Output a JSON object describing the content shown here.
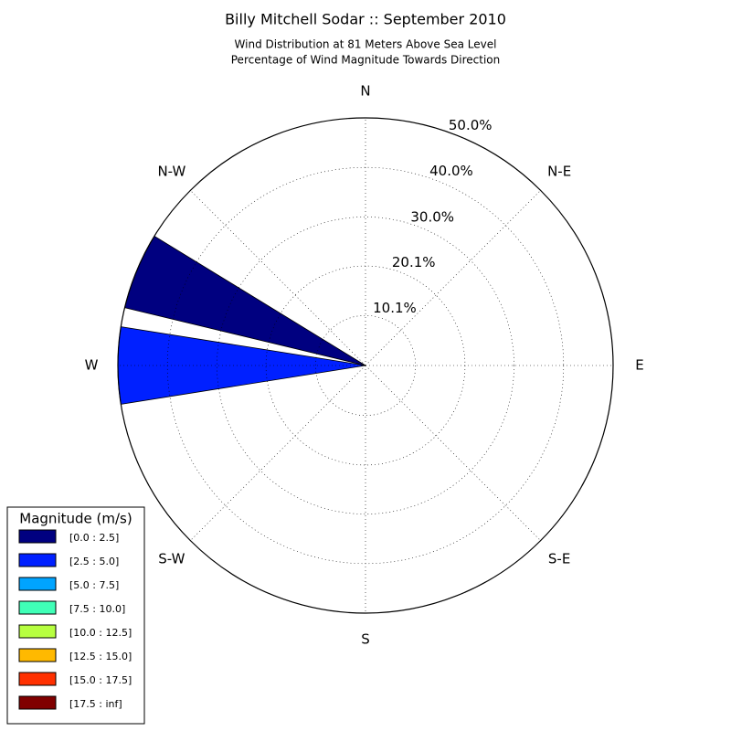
{
  "chart_data": {
    "type": "windrose",
    "title": "Billy Mitchell Sodar :: September 2010",
    "subtitle": [
      "Wind Distribution at 81 Meters Above Sea Level",
      "Percentage of Wind Magnitude Towards Direction"
    ],
    "categories": [
      "N",
      null,
      "N-E",
      null,
      "E",
      null,
      "S-E",
      null,
      "S",
      null,
      "S-W",
      null,
      "W",
      null,
      "N-W",
      null
    ],
    "rlim": [
      0,
      50
    ],
    "rticks": [
      {
        "value": 10.1,
        "label": "10.1%"
      },
      {
        "value": 20.1,
        "label": "20.1%"
      },
      {
        "value": 30.0,
        "label": "30.0%"
      },
      {
        "value": 40.0,
        "label": "40.0%"
      },
      {
        "value": 50.0,
        "label": "50.0%"
      }
    ],
    "grid": true,
    "legend_title": "Magnitude (m/s)",
    "legend_position": "lower left",
    "series": [
      {
        "name": "[0.0 : 2.5]",
        "color": "#000080",
        "values": [
          0,
          0,
          0,
          0,
          0,
          0,
          0,
          0,
          0,
          0,
          0,
          0,
          0,
          50,
          0,
          0
        ]
      },
      {
        "name": "[2.5 : 5.0]",
        "color": "#0020ff",
        "values": [
          0,
          0,
          0,
          0,
          0,
          0,
          0,
          0,
          0,
          0,
          0,
          0,
          50,
          0,
          0,
          0
        ]
      },
      {
        "name": "[5.0 : 7.5]",
        "color": "#00a4ff",
        "values": [
          0,
          0,
          0,
          0,
          0,
          0,
          0,
          0,
          0,
          0,
          0,
          0,
          0,
          0,
          0,
          0
        ]
      },
      {
        "name": "[7.5 : 10.0]",
        "color": "#40ffb7",
        "values": [
          0,
          0,
          0,
          0,
          0,
          0,
          0,
          0,
          0,
          0,
          0,
          0,
          0,
          0,
          0,
          0
        ]
      },
      {
        "name": "[10.0 : 12.5]",
        "color": "#b7ff40",
        "values": [
          0,
          0,
          0,
          0,
          0,
          0,
          0,
          0,
          0,
          0,
          0,
          0,
          0,
          0,
          0,
          0
        ]
      },
      {
        "name": "[12.5 : 15.0]",
        "color": "#ffb900",
        "values": [
          0,
          0,
          0,
          0,
          0,
          0,
          0,
          0,
          0,
          0,
          0,
          0,
          0,
          0,
          0,
          0
        ]
      },
      {
        "name": "[15.0 : 17.5]",
        "color": "#ff3000",
        "values": [
          0,
          0,
          0,
          0,
          0,
          0,
          0,
          0,
          0,
          0,
          0,
          0,
          0,
          0,
          0,
          0
        ]
      },
      {
        "name": "[17.5 : inf]",
        "color": "#800000",
        "values": [
          0,
          0,
          0,
          0,
          0,
          0,
          0,
          0,
          0,
          0,
          0,
          0,
          0,
          0,
          0,
          0
        ]
      }
    ]
  }
}
